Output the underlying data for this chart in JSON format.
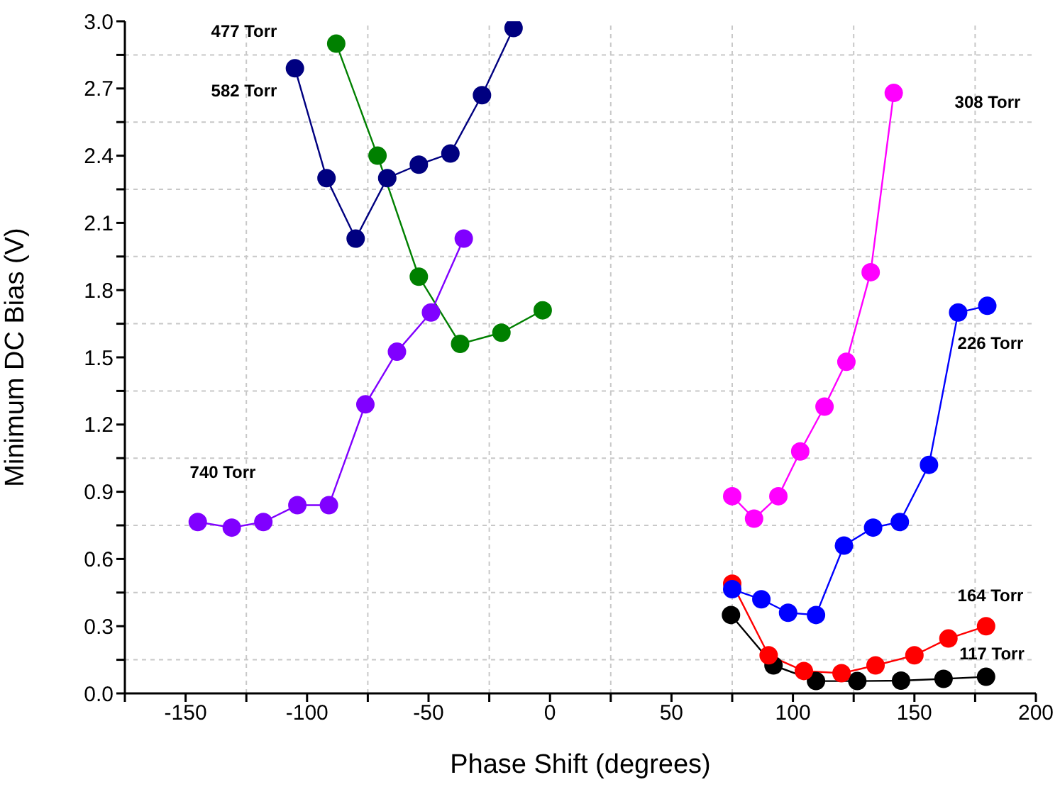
{
  "chart_data": {
    "type": "line",
    "xlabel": "Phase Shift (degrees)",
    "ylabel": "Minimum DC Bias (V)",
    "xlim": [
      -175,
      200
    ],
    "xticks": [
      {
        "value": -175,
        "label": null
      },
      -150,
      {
        "value": -125,
        "label": null
      },
      -100,
      {
        "value": -75,
        "label": null
      },
      -50,
      {
        "value": -25,
        "label": null
      },
      0,
      {
        "value": 25,
        "label": null
      },
      50,
      {
        "value": 75,
        "label": null
      },
      100,
      {
        "value": 125,
        "label": null
      },
      150,
      {
        "value": 175,
        "label": null
      },
      200
    ],
    "ylim": [
      0,
      3
    ],
    "yticks": [
      "0.0",
      {
        "value": 0.15,
        "label": null
      },
      {
        "value": 0.3,
        "label": "0.3"
      },
      {
        "value": 0.45,
        "label": null
      },
      {
        "value": 0.6,
        "label": "0.6"
      },
      {
        "value": 0.75,
        "label": null
      },
      {
        "value": 0.9,
        "label": "0.9"
      },
      {
        "value": 1.05,
        "label": null
      },
      {
        "value": 1.2,
        "label": "1.2"
      },
      {
        "value": 1.35,
        "label": null
      },
      {
        "value": 1.5,
        "label": "1.5"
      },
      {
        "value": 1.65,
        "label": null
      },
      {
        "value": 1.8,
        "label": "1.8"
      },
      {
        "value": 1.95,
        "label": null
      },
      {
        "value": 2.1,
        "label": "2.1"
      },
      {
        "value": 2.25,
        "label": null
      },
      {
        "value": 2.4,
        "label": "2.4"
      },
      {
        "value": 2.55,
        "label": null
      },
      {
        "value": 2.7,
        "label": "2.7"
      },
      {
        "value": 2.85,
        "label": null
      },
      {
        "value": 3,
        "label": "3.0"
      }
    ],
    "grid": true,
    "marker": "circle",
    "line_style": "solid",
    "series": [
      {
        "name": "740 Torr",
        "color": "#8000ff",
        "x": [
          -145,
          -131,
          -118,
          -104,
          -91,
          -76,
          -63,
          -49,
          -35.5
        ],
        "values": [
          0.765,
          0.74,
          0.765,
          0.84,
          0.84,
          1.29,
          1.525,
          1.7,
          2.03
        ]
      },
      {
        "name": "582 Torr",
        "color": "#000080",
        "x": [
          -105,
          -92,
          -80,
          -67,
          -54,
          -41,
          -28,
          -15
        ],
        "values": [
          2.79,
          2.3,
          2.03,
          2.3,
          2.36,
          2.41,
          2.67,
          2.97
        ]
      },
      {
        "color": "#008000",
        "x": [
          -88,
          -71,
          -54,
          -37,
          -20,
          -3
        ],
        "values": [
          2.9,
          2.4,
          1.86,
          1.56,
          1.61,
          1.71
        ]
      },
      {
        "color": "#ff00ff",
        "x": [
          75,
          84,
          94,
          103,
          113,
          122,
          132,
          141.5
        ],
        "values": [
          0.88,
          0.78,
          0.88,
          1.08,
          1.28,
          1.48,
          1.88,
          2.68
        ]
      },
      {
        "name": "226 Torr",
        "color": "#0000ff",
        "x": [
          75,
          87,
          98,
          109.5,
          121,
          133,
          144,
          156,
          168,
          180
        ],
        "values": [
          0.465,
          0.42,
          0.36,
          0.35,
          0.66,
          0.74,
          0.765,
          1.02,
          1.7,
          1.73
        ]
      },
      {
        "name": "164 Torr",
        "color": "#ff0000",
        "x": [
          75,
          90,
          104.5,
          120,
          134,
          150,
          164,
          179.5
        ],
        "values": [
          0.49,
          0.17,
          0.1,
          0.09,
          0.125,
          0.17,
          0.245,
          0.3
        ]
      },
      {
        "name": "117 Torr",
        "color": "#000000",
        "x": [
          74.5,
          92,
          109.5,
          126.5,
          144.5,
          162,
          179.5
        ],
        "values": [
          0.35,
          0.125,
          0.055,
          0.055,
          0.057,
          0.065,
          0.074
        ]
      }
    ],
    "annotations": [
      "477 Torr",
      "308 Torr"
    ]
  }
}
